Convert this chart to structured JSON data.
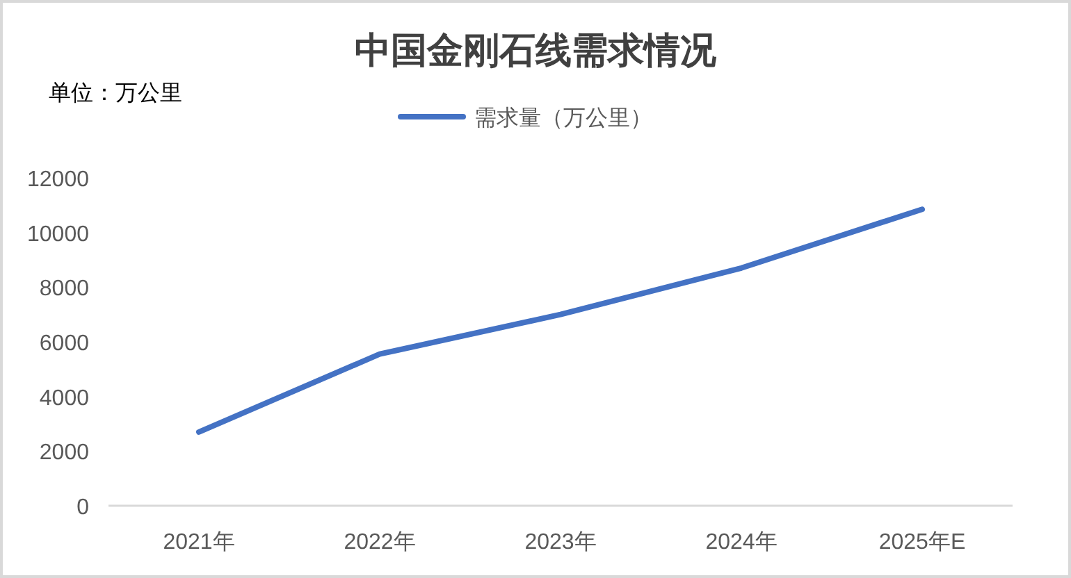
{
  "chart_data": {
    "type": "line",
    "title": "中国金刚石线需求情况",
    "ylabel": "单位：万公里",
    "categories": [
      "2021年",
      "2022年",
      "2023年",
      "2024年",
      "2025年E"
    ],
    "series": [
      {
        "name": "需求量（万公里）",
        "color": "#4472c4",
        "values": [
          2700,
          5550,
          7000,
          8700,
          10850
        ]
      }
    ],
    "ylim": [
      0,
      12000
    ],
    "yticks": [
      0,
      2000,
      4000,
      6000,
      8000,
      10000,
      12000
    ],
    "grid": false,
    "legend": "top",
    "marker": "none",
    "line_style": "solid"
  }
}
